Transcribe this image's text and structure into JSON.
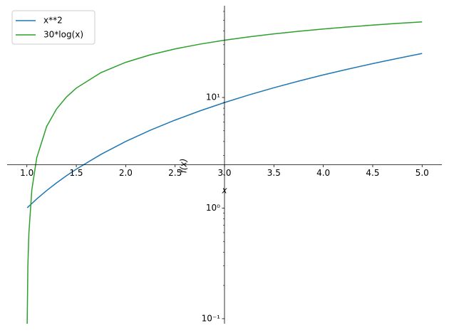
{
  "chart_data": {
    "type": "line",
    "x_label": "x",
    "y_label": "f(x)",
    "x": [
      1.003,
      1.01,
      1.02,
      1.05,
      1.1,
      1.2,
      1.3,
      1.4,
      1.5,
      1.75,
      2,
      2.25,
      2.5,
      2.75,
      3,
      3.25,
      3.5,
      3.75,
      4,
      4.25,
      4.5,
      4.75,
      5
    ],
    "series": [
      {
        "name": "x**2",
        "color": "#1f77b4",
        "values": [
          1.01,
          1.02,
          1.04,
          1.1,
          1.21,
          1.44,
          1.69,
          1.96,
          2.25,
          3.06,
          4,
          5.06,
          6.25,
          7.56,
          9,
          10.56,
          12.25,
          14.06,
          16,
          18.06,
          20.25,
          22.56,
          25
        ]
      },
      {
        "name": "30*log(x)",
        "color": "#2ca02c",
        "values": [
          0.09,
          0.3,
          0.59,
          1.46,
          2.86,
          5.47,
          7.87,
          10.09,
          12.16,
          16.79,
          20.79,
          24.33,
          27.49,
          30.35,
          32.96,
          35.36,
          37.58,
          39.65,
          41.59,
          43.41,
          45.12,
          46.75,
          48.28
        ]
      }
    ],
    "xlim": [
      0.8,
      5.2
    ],
    "xticks": [
      {
        "value": 1,
        "label": "1.0"
      },
      {
        "value": 1.5,
        "label": "1.5"
      },
      {
        "value": 2,
        "label": "2.0"
      },
      {
        "value": 2.5,
        "label": "2.5"
      },
      {
        "value": 3,
        "label": "3.0"
      },
      {
        "value": 3.5,
        "label": "3.5"
      },
      {
        "value": 4,
        "label": "4.0"
      },
      {
        "value": 4.5,
        "label": "4.5"
      },
      {
        "value": 5,
        "label": "5.0"
      }
    ],
    "ylim": [
      0.09,
      67.6
    ],
    "yscale": "log",
    "yticks": [
      {
        "value": 0.1,
        "label": "10⁻¹"
      },
      {
        "value": 1,
        "label": "10⁰"
      },
      {
        "value": 10,
        "label": "10¹"
      }
    ],
    "yminorticks": [
      0.2,
      0.3,
      0.4,
      0.5,
      0.6,
      0.7,
      0.8,
      0.9,
      2,
      3,
      4,
      5,
      6,
      7,
      8,
      9,
      20,
      30,
      40,
      50,
      60
    ],
    "legend": "upper left"
  }
}
